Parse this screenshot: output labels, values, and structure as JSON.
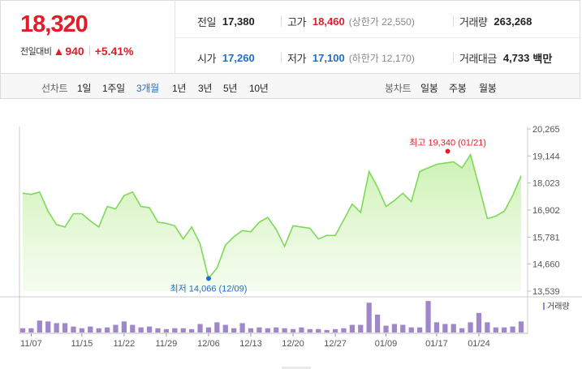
{
  "summary": {
    "current_price": "18,320",
    "change_label": "전일대비",
    "change_arrow": "▲",
    "change_value": "940",
    "change_percent": "+5.41%",
    "prev_close_label": "전일",
    "prev_close": "17,380",
    "high_label": "고가",
    "high": "18,460",
    "upper_limit": "(상한가 22,550)",
    "volume_label": "거래량",
    "volume": "263,268",
    "open_label": "시가",
    "open": "17,260",
    "low_label": "저가",
    "low": "17,100",
    "lower_limit": "(하한가 12,170)",
    "amount_label": "거래대금",
    "amount": "4,733",
    "amount_unit": "백만"
  },
  "colors": {
    "up": "#e41c2a",
    "down": "#1e6ccf",
    "line": "#7ed957",
    "area": "#c9f0ad",
    "volume_bar": "#9f87c9",
    "max_marker": "#e41c2a",
    "min_marker": "#1e6ccf"
  },
  "toolbar": {
    "line_label": "선차트",
    "periods": [
      "1일",
      "1주일",
      "3개월",
      "1년",
      "3년",
      "5년",
      "10년"
    ],
    "active_period": "3개월",
    "candle_label": "봉차트",
    "candles": [
      "일봉",
      "주봉",
      "월봉"
    ]
  },
  "chart_data": {
    "type": "area",
    "y_ticks": [
      "20,265",
      "19,144",
      "18,023",
      "16,902",
      "15,781",
      "14,660",
      "13,539"
    ],
    "ylim": [
      13539,
      20265
    ],
    "x_tick_labels": [
      "11/07",
      "11/15",
      "11/22",
      "11/29",
      "12/06",
      "12/13",
      "12/20",
      "12/27",
      "01/09",
      "01/17",
      "01/24"
    ],
    "price_series": [
      17600,
      17550,
      17650,
      16850,
      16300,
      16200,
      16750,
      16750,
      16450,
      16200,
      17050,
      16950,
      17500,
      17650,
      17050,
      17000,
      16400,
      16350,
      16250,
      15700,
      16200,
      15500,
      14066,
      14500,
      15450,
      15800,
      16050,
      16000,
      16400,
      16600,
      16100,
      15400,
      16250,
      16200,
      16150,
      15700,
      15850,
      15850,
      16500,
      17150,
      16800,
      18500,
      17850,
      17050,
      17300,
      17600,
      17250,
      18500,
      18650,
      18800,
      18850,
      18900,
      18650,
      19200,
      17900,
      16550,
      16650,
      16850,
      17500,
      18320
    ],
    "volume_series": [
      5,
      5,
      14,
      13,
      11,
      11,
      7,
      5,
      7,
      5,
      6,
      9,
      13,
      9,
      6,
      7,
      5,
      4,
      5,
      5,
      4,
      10,
      6,
      12,
      9,
      5,
      11,
      5,
      6,
      5,
      6,
      5,
      4,
      6,
      4,
      4,
      3,
      4,
      5,
      9,
      9,
      35,
      21,
      8,
      10,
      9,
      6,
      6,
      37,
      12,
      10,
      10,
      5,
      12,
      23,
      12,
      6,
      6,
      7,
      13
    ],
    "max_annotation": "최고 19,340 (01/21)",
    "min_annotation": "최저 14,066 (12/09)",
    "volume_label": "거래량"
  }
}
